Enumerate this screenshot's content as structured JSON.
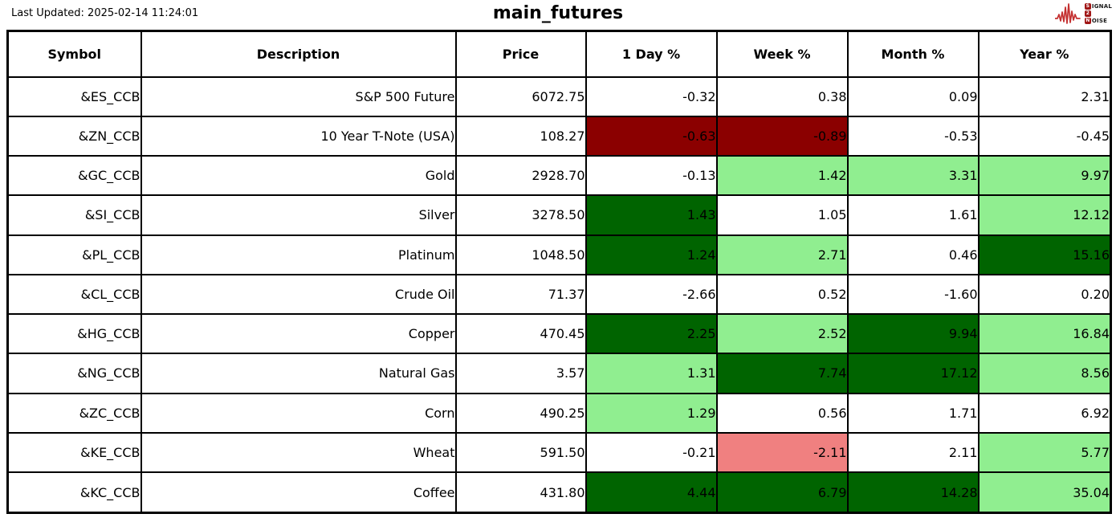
{
  "page": {
    "last_updated": "Last Updated: 2025-02-14 11:24:01",
    "title": "main_futures"
  },
  "logo": {
    "line1_initial": "S",
    "line1_rest": "IGNAL",
    "line2_initial": "2",
    "line3_initial": "N",
    "line3_rest": "OISE",
    "waveform_color": "#c43030",
    "box_color": "#a01616"
  },
  "colors": {
    "neutral": "#ffffff",
    "positive_strong": "#006400",
    "positive_mild": "#90EE90",
    "negative_strong": "#8B0000",
    "negative_mild": "#F08080"
  },
  "chart_data": {
    "type": "table",
    "title": "main_futures",
    "columns": [
      "Symbol",
      "Description",
      "Price",
      "1 Day %",
      "Week %",
      "Month %",
      "Year %"
    ],
    "rows": [
      {
        "symbol": "&ES_CCB",
        "description": "S&P 500 Future",
        "price": "6072.75",
        "pct": [
          {
            "value": "-0.32",
            "bg": "neutral"
          },
          {
            "value": "0.38",
            "bg": "neutral"
          },
          {
            "value": "0.09",
            "bg": "neutral"
          },
          {
            "value": "2.31",
            "bg": "neutral"
          }
        ]
      },
      {
        "symbol": "&ZN_CCB",
        "description": "10 Year T-Note (USA)",
        "price": "108.27",
        "pct": [
          {
            "value": "-0.63",
            "bg": "negative_strong"
          },
          {
            "value": "-0.89",
            "bg": "negative_strong"
          },
          {
            "value": "-0.53",
            "bg": "neutral"
          },
          {
            "value": "-0.45",
            "bg": "neutral"
          }
        ]
      },
      {
        "symbol": "&GC_CCB",
        "description": "Gold",
        "price": "2928.70",
        "pct": [
          {
            "value": "-0.13",
            "bg": "neutral"
          },
          {
            "value": "1.42",
            "bg": "positive_mild"
          },
          {
            "value": "3.31",
            "bg": "positive_mild"
          },
          {
            "value": "9.97",
            "bg": "positive_mild"
          }
        ]
      },
      {
        "symbol": "&SI_CCB",
        "description": "Silver",
        "price": "3278.50",
        "pct": [
          {
            "value": "1.43",
            "bg": "positive_strong"
          },
          {
            "value": "1.05",
            "bg": "neutral"
          },
          {
            "value": "1.61",
            "bg": "neutral"
          },
          {
            "value": "12.12",
            "bg": "positive_mild"
          }
        ]
      },
      {
        "symbol": "&PL_CCB",
        "description": "Platinum",
        "price": "1048.50",
        "pct": [
          {
            "value": "1.24",
            "bg": "positive_strong"
          },
          {
            "value": "2.71",
            "bg": "positive_mild"
          },
          {
            "value": "0.46",
            "bg": "neutral"
          },
          {
            "value": "15.16",
            "bg": "positive_strong"
          }
        ]
      },
      {
        "symbol": "&CL_CCB",
        "description": "Crude Oil",
        "price": "71.37",
        "pct": [
          {
            "value": "-2.66",
            "bg": "neutral"
          },
          {
            "value": "0.52",
            "bg": "neutral"
          },
          {
            "value": "-1.60",
            "bg": "neutral"
          },
          {
            "value": "0.20",
            "bg": "neutral"
          }
        ]
      },
      {
        "symbol": "&HG_CCB",
        "description": "Copper",
        "price": "470.45",
        "pct": [
          {
            "value": "2.25",
            "bg": "positive_strong"
          },
          {
            "value": "2.52",
            "bg": "positive_mild"
          },
          {
            "value": "9.94",
            "bg": "positive_strong"
          },
          {
            "value": "16.84",
            "bg": "positive_mild"
          }
        ]
      },
      {
        "symbol": "&NG_CCB",
        "description": "Natural Gas",
        "price": "3.57",
        "pct": [
          {
            "value": "1.31",
            "bg": "positive_mild"
          },
          {
            "value": "7.74",
            "bg": "positive_strong"
          },
          {
            "value": "17.12",
            "bg": "positive_strong"
          },
          {
            "value": "8.56",
            "bg": "positive_mild"
          }
        ]
      },
      {
        "symbol": "&ZC_CCB",
        "description": "Corn",
        "price": "490.25",
        "pct": [
          {
            "value": "1.29",
            "bg": "positive_mild"
          },
          {
            "value": "0.56",
            "bg": "neutral"
          },
          {
            "value": "1.71",
            "bg": "neutral"
          },
          {
            "value": "6.92",
            "bg": "neutral"
          }
        ]
      },
      {
        "symbol": "&KE_CCB",
        "description": "Wheat",
        "price": "591.50",
        "pct": [
          {
            "value": "-0.21",
            "bg": "neutral"
          },
          {
            "value": "-2.11",
            "bg": "negative_mild"
          },
          {
            "value": "2.11",
            "bg": "neutral"
          },
          {
            "value": "5.77",
            "bg": "positive_mild"
          }
        ]
      },
      {
        "symbol": "&KC_CCB",
        "description": "Coffee",
        "price": "431.80",
        "pct": [
          {
            "value": "4.44",
            "bg": "positive_strong"
          },
          {
            "value": "6.79",
            "bg": "positive_strong"
          },
          {
            "value": "14.28",
            "bg": "positive_strong"
          },
          {
            "value": "35.04",
            "bg": "positive_mild"
          }
        ]
      }
    ]
  }
}
